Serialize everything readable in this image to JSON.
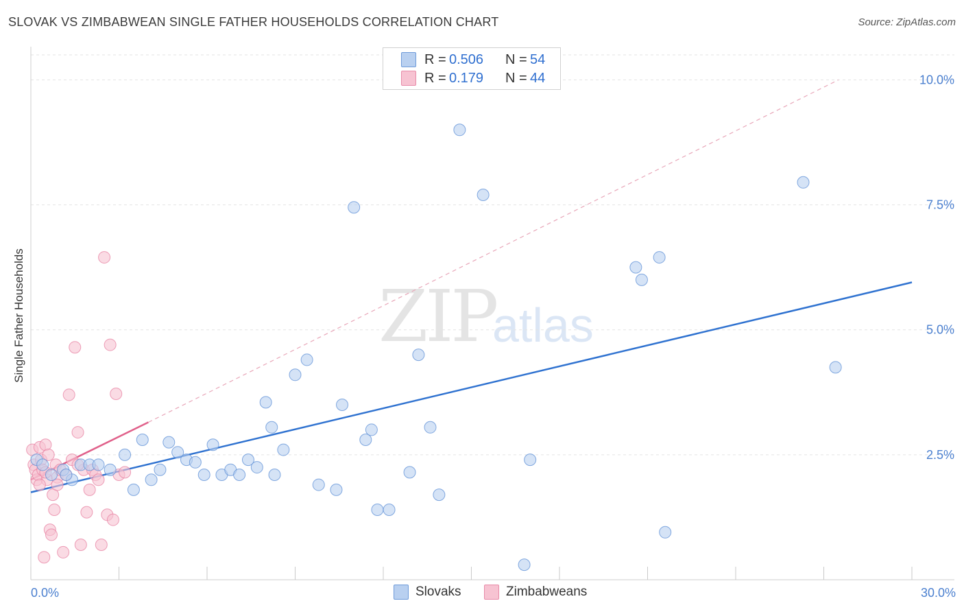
{
  "header": {
    "title": "SLOVAK VS ZIMBABWEAN SINGLE FATHER HOUSEHOLDS CORRELATION CHART",
    "source": "Source: ZipAtlas.com"
  },
  "watermark": {
    "zip": "ZIP",
    "atlas": "atlas"
  },
  "legend": {
    "rows": [
      {
        "r_label": "R =",
        "r_value": "0.506",
        "n_label": "N =",
        "n_value": "54",
        "color": "#a9c4ee"
      },
      {
        "r_label": "R =",
        "r_value": "0.179",
        "n_label": "N =",
        "n_value": "44",
        "color": "#f5b8c9"
      }
    ]
  },
  "bottom_legend": {
    "slovaks": "Slovaks",
    "zimbabweans": "Zimbabweans"
  },
  "colors": {
    "slovak_fill": "#b9d0f0",
    "slovak_stroke": "#5b8ed6",
    "slovak_line": "#2f72d0",
    "zim_fill": "#f7c3d2",
    "zim_stroke": "#e77fa0",
    "zim_line": "#e0608a",
    "grid": "#e3e3e3",
    "diag": "#e8a6b8"
  },
  "chart_data": {
    "type": "scatter",
    "title": "SLOVAK VS ZIMBABWEAN SINGLE FATHER HOUSEHOLDS CORRELATION CHART",
    "xlabel": "",
    "ylabel": "Single Father Households",
    "xlim": [
      0,
      30
    ],
    "ylim": [
      0,
      10.5
    ],
    "x_tick_labels": [
      "0.0%",
      "30.0%"
    ],
    "y_ticks": [
      2.5,
      5.0,
      7.5,
      10.0
    ],
    "y_tick_labels": [
      "2.5%",
      "5.0%",
      "7.5%",
      "10.0%"
    ],
    "series": [
      {
        "name": "Slovaks",
        "points": [
          [
            0.2,
            2.4
          ],
          [
            0.4,
            2.3
          ],
          [
            0.7,
            2.1
          ],
          [
            1.1,
            2.2
          ],
          [
            1.7,
            2.3
          ],
          [
            1.4,
            2.0
          ],
          [
            2.0,
            2.3
          ],
          [
            2.3,
            2.3
          ],
          [
            2.7,
            2.2
          ],
          [
            3.2,
            2.5
          ],
          [
            3.5,
            1.8
          ],
          [
            3.8,
            2.8
          ],
          [
            4.1,
            2.0
          ],
          [
            4.4,
            2.2
          ],
          [
            4.7,
            2.75
          ],
          [
            5.0,
            2.55
          ],
          [
            5.3,
            2.4
          ],
          [
            5.6,
            2.35
          ],
          [
            5.9,
            2.1
          ],
          [
            6.2,
            2.7
          ],
          [
            6.5,
            2.1
          ],
          [
            6.8,
            2.2
          ],
          [
            7.1,
            2.1
          ],
          [
            7.4,
            2.4
          ],
          [
            7.7,
            2.25
          ],
          [
            8.0,
            3.55
          ],
          [
            8.2,
            3.05
          ],
          [
            8.3,
            2.1
          ],
          [
            8.6,
            2.6
          ],
          [
            9.0,
            4.1
          ],
          [
            9.4,
            4.4
          ],
          [
            9.8,
            1.9
          ],
          [
            10.4,
            1.8
          ],
          [
            10.6,
            3.5
          ],
          [
            11.0,
            7.45
          ],
          [
            11.4,
            2.8
          ],
          [
            11.6,
            3.0
          ],
          [
            11.8,
            1.4
          ],
          [
            12.2,
            1.4
          ],
          [
            12.9,
            2.15
          ],
          [
            13.2,
            4.5
          ],
          [
            13.6,
            3.05
          ],
          [
            13.9,
            1.7
          ],
          [
            14.6,
            9.0
          ],
          [
            15.4,
            7.7
          ],
          [
            16.8,
            0.3
          ],
          [
            17.0,
            2.4
          ],
          [
            20.6,
            6.25
          ],
          [
            20.8,
            6.0
          ],
          [
            21.4,
            6.45
          ],
          [
            21.6,
            0.95
          ],
          [
            26.3,
            7.95
          ],
          [
            27.4,
            4.25
          ],
          [
            1.2,
            2.1
          ]
        ]
      },
      {
        "name": "Zimbabweans",
        "points": [
          [
            0.05,
            2.6
          ],
          [
            0.1,
            2.3
          ],
          [
            0.15,
            2.2
          ],
          [
            0.2,
            2.0
          ],
          [
            0.25,
            2.1
          ],
          [
            0.3,
            2.65
          ],
          [
            0.35,
            2.4
          ],
          [
            0.4,
            2.2
          ],
          [
            0.45,
            0.45
          ],
          [
            0.5,
            2.7
          ],
          [
            0.55,
            2.0
          ],
          [
            0.6,
            2.5
          ],
          [
            0.65,
            1.0
          ],
          [
            0.7,
            0.9
          ],
          [
            0.75,
            1.7
          ],
          [
            0.8,
            1.4
          ],
          [
            0.85,
            2.3
          ],
          [
            0.9,
            2.05
          ],
          [
            1.0,
            2.2
          ],
          [
            1.1,
            0.55
          ],
          [
            1.2,
            2.1
          ],
          [
            1.3,
            3.7
          ],
          [
            1.4,
            2.4
          ],
          [
            1.5,
            4.65
          ],
          [
            1.6,
            2.95
          ],
          [
            1.7,
            0.7
          ],
          [
            1.8,
            2.2
          ],
          [
            1.9,
            1.35
          ],
          [
            2.0,
            1.8
          ],
          [
            2.1,
            2.2
          ],
          [
            2.2,
            2.1
          ],
          [
            2.3,
            2.0
          ],
          [
            2.4,
            0.7
          ],
          [
            2.5,
            6.45
          ],
          [
            2.6,
            1.3
          ],
          [
            2.7,
            4.7
          ],
          [
            2.8,
            1.2
          ],
          [
            2.9,
            3.72
          ],
          [
            3.0,
            2.1
          ],
          [
            3.2,
            2.15
          ],
          [
            0.3,
            1.9
          ],
          [
            0.5,
            2.15
          ],
          [
            0.9,
            1.9
          ],
          [
            1.6,
            2.3
          ]
        ]
      }
    ],
    "trendlines": [
      {
        "name": "Slovaks",
        "from": [
          0,
          1.75
        ],
        "to": [
          30,
          5.95
        ]
      },
      {
        "name": "Zimbabweans",
        "from": [
          0,
          2.0
        ],
        "to": [
          4.0,
          3.15
        ]
      },
      {
        "name": "Zimbabweans-extrapolated",
        "from": [
          4.0,
          3.15
        ],
        "to": [
          27.5,
          10.0
        ]
      }
    ]
  }
}
